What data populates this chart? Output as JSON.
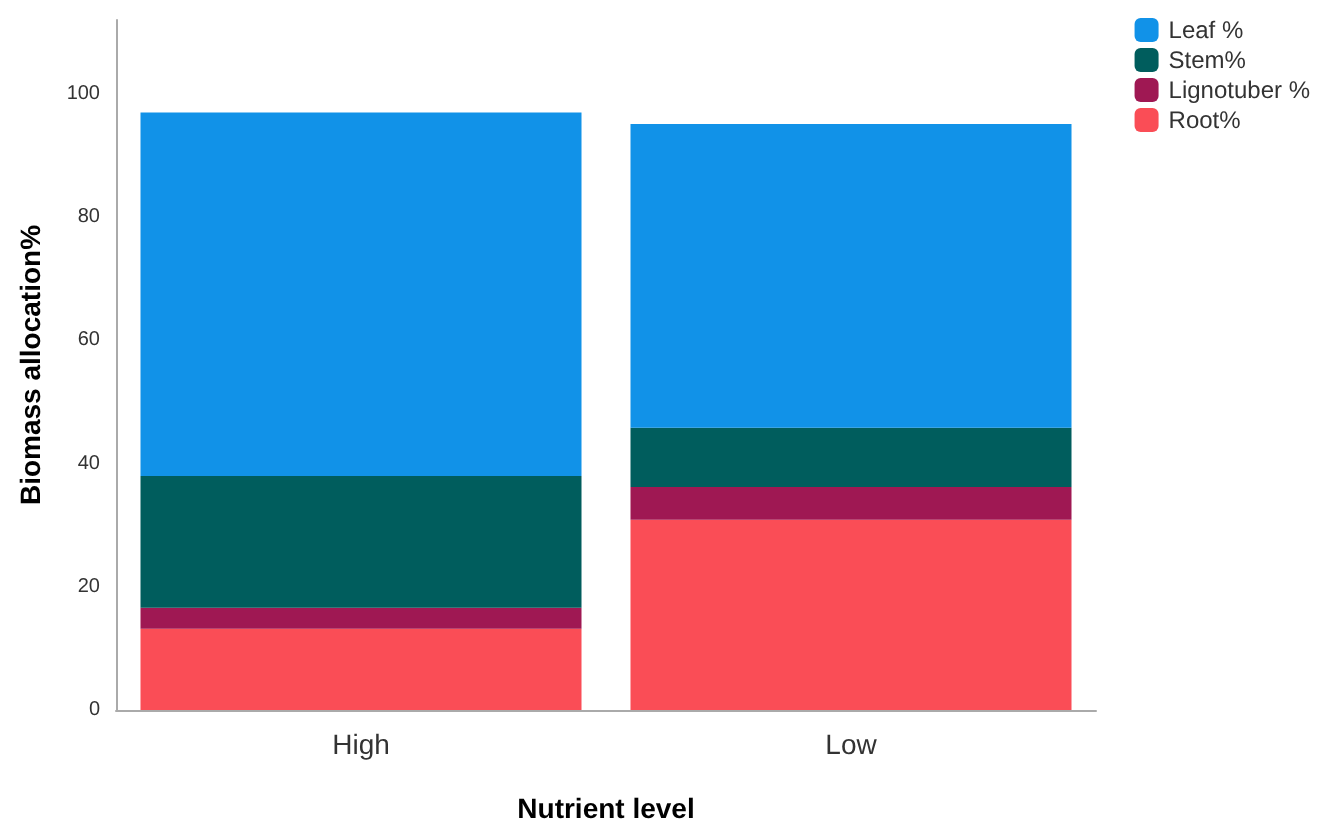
{
  "chart_data": {
    "type": "bar",
    "stacked": true,
    "xlabel": "Nutrient level",
    "ylabel": "Biomass allocation%",
    "categories": [
      "High",
      "Low"
    ],
    "series": [
      {
        "name": "Root%",
        "color": "#fa4d56",
        "values": [
          13.2,
          30.9
        ]
      },
      {
        "name": "Lignotuber %",
        "color": "#9f1853",
        "values": [
          3.4,
          5.3
        ]
      },
      {
        "name": "Stem%",
        "color": "#005d5d",
        "values": [
          21.4,
          9.6
        ]
      },
      {
        "name": "Leaf %",
        "color": "#1192e8",
        "values": [
          59.0,
          49.3
        ]
      }
    ],
    "ylim": [
      0,
      112
    ],
    "yticks": [
      0,
      20,
      40,
      60,
      80,
      100
    ],
    "grid": false,
    "legend": "top right"
  }
}
